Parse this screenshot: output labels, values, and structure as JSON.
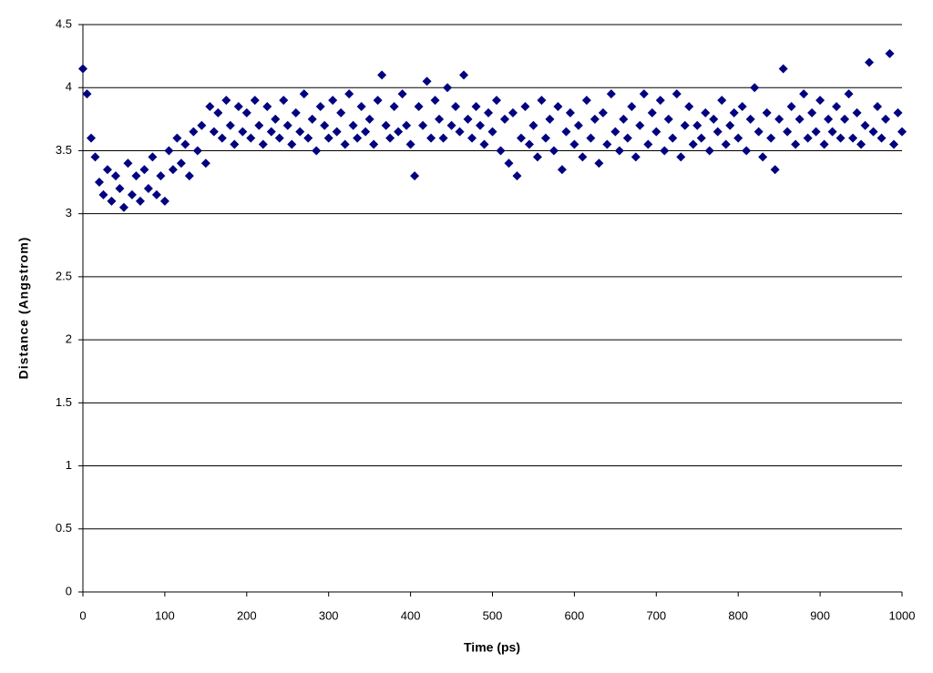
{
  "chart_data": {
    "type": "scatter",
    "x_label": "Time (ps)",
    "y_label": "Distance (Angstrom)",
    "color": "#000080",
    "grid": true,
    "xlim": [
      0,
      1000
    ],
    "xticks": [
      0,
      100,
      200,
      300,
      400,
      500,
      600,
      700,
      800,
      900,
      1000
    ],
    "ylim": [
      0,
      4.5
    ],
    "yticks": [
      0,
      0.5,
      1,
      1.5,
      2,
      2.5,
      3,
      3.5,
      4,
      4.5
    ],
    "x": [
      0,
      5,
      10,
      15,
      20,
      25,
      30,
      35,
      40,
      45,
      50,
      55,
      60,
      65,
      70,
      75,
      80,
      85,
      90,
      95,
      100,
      105,
      110,
      115,
      120,
      125,
      130,
      135,
      140,
      145,
      150,
      155,
      160,
      165,
      170,
      175,
      180,
      185,
      190,
      195,
      200,
      205,
      210,
      215,
      220,
      225,
      230,
      235,
      240,
      245,
      250,
      255,
      260,
      265,
      270,
      275,
      280,
      285,
      290,
      295,
      300,
      305,
      310,
      315,
      320,
      325,
      330,
      335,
      340,
      345,
      350,
      355,
      360,
      365,
      370,
      375,
      380,
      385,
      390,
      395,
      400,
      405,
      410,
      415,
      420,
      425,
      430,
      435,
      440,
      445,
      450,
      455,
      460,
      465,
      470,
      475,
      480,
      485,
      490,
      495,
      500,
      505,
      510,
      515,
      520,
      525,
      530,
      535,
      540,
      545,
      550,
      555,
      560,
      565,
      570,
      575,
      580,
      585,
      590,
      595,
      600,
      605,
      610,
      615,
      620,
      625,
      630,
      635,
      640,
      645,
      650,
      655,
      660,
      665,
      670,
      675,
      680,
      685,
      690,
      695,
      700,
      705,
      710,
      715,
      720,
      725,
      730,
      735,
      740,
      745,
      750,
      755,
      760,
      765,
      770,
      775,
      780,
      785,
      790,
      795,
      800,
      805,
      810,
      815,
      820,
      825,
      830,
      835,
      840,
      845,
      850,
      855,
      860,
      865,
      870,
      875,
      880,
      885,
      890,
      895,
      900,
      905,
      910,
      915,
      920,
      925,
      930,
      935,
      940,
      945,
      950,
      955,
      960,
      965,
      970,
      975,
      980,
      985,
      990,
      995,
      1000
    ],
    "values": [
      4.15,
      3.95,
      3.6,
      3.45,
      3.25,
      3.15,
      3.35,
      3.1,
      3.3,
      3.2,
      3.05,
      3.4,
      3.15,
      3.3,
      3.1,
      3.35,
      3.2,
      3.45,
      3.15,
      3.3,
      3.1,
      3.5,
      3.35,
      3.6,
      3.4,
      3.55,
      3.3,
      3.65,
      3.5,
      3.7,
      3.4,
      3.85,
      3.65,
      3.8,
      3.6,
      3.9,
      3.7,
      3.55,
      3.85,
      3.65,
      3.8,
      3.6,
      3.9,
      3.7,
      3.55,
      3.85,
      3.65,
      3.75,
      3.6,
      3.9,
      3.7,
      3.55,
      3.8,
      3.65,
      3.95,
      3.6,
      3.75,
      3.5,
      3.85,
      3.7,
      3.6,
      3.9,
      3.65,
      3.8,
      3.55,
      3.95,
      3.7,
      3.6,
      3.85,
      3.65,
      3.75,
      3.55,
      3.9,
      4.1,
      3.7,
      3.6,
      3.85,
      3.65,
      3.95,
      3.7,
      3.55,
      3.3,
      3.85,
      3.7,
      4.05,
      3.6,
      3.9,
      3.75,
      3.6,
      4.0,
      3.7,
      3.85,
      3.65,
      4.1,
      3.75,
      3.6,
      3.85,
      3.7,
      3.55,
      3.8,
      3.65,
      3.9,
      3.5,
      3.75,
      3.4,
      3.8,
      3.3,
      3.6,
      3.85,
      3.55,
      3.7,
      3.45,
      3.9,
      3.6,
      3.75,
      3.5,
      3.85,
      3.35,
      3.65,
      3.8,
      3.55,
      3.7,
      3.45,
      3.9,
      3.6,
      3.75,
      3.4,
      3.8,
      3.55,
      3.95,
      3.65,
      3.5,
      3.75,
      3.6,
      3.85,
      3.45,
      3.7,
      3.95,
      3.55,
      3.8,
      3.65,
      3.9,
      3.5,
      3.75,
      3.6,
      3.95,
      3.45,
      3.7,
      3.85,
      3.55,
      3.7,
      3.6,
      3.8,
      3.5,
      3.75,
      3.65,
      3.9,
      3.55,
      3.7,
      3.8,
      3.6,
      3.85,
      3.5,
      3.75,
      4.0,
      3.65,
      3.45,
      3.8,
      3.6,
      3.35,
      3.75,
      4.15,
      3.65,
      3.85,
      3.55,
      3.75,
      3.95,
      3.6,
      3.8,
      3.65,
      3.9,
      3.55,
      3.75,
      3.65,
      3.85,
      3.6,
      3.75,
      3.95,
      3.6,
      3.8,
      3.55,
      3.7,
      4.2,
      3.65,
      3.85,
      3.6,
      3.75,
      4.27,
      3.55,
      3.8,
      3.65
    ]
  }
}
